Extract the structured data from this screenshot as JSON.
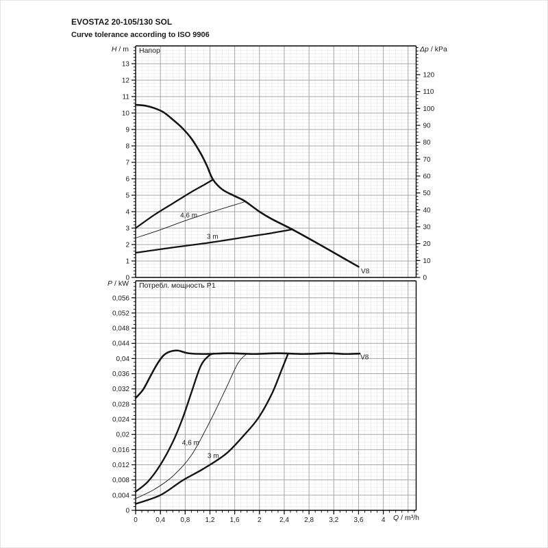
{
  "header": {
    "title": "EVOSTA2 20-105/130 SOL",
    "subtitle": "Curve tolerance according to ISO 9906"
  },
  "colors": {
    "curve": "#141414",
    "grid_major": "#a6a6a6",
    "grid_minor": "#e7e7e7",
    "axis": "#000000",
    "text": "#1a1a1a"
  },
  "chart_data": [
    {
      "type": "line",
      "title": "Напор",
      "y_left": {
        "symbol": "H",
        "unit": "/ m",
        "min": 0,
        "max": 14,
        "major_ticks": [
          0,
          1,
          2,
          3,
          4,
          5,
          6,
          7,
          8,
          9,
          10,
          11,
          12,
          13
        ],
        "labels": [
          "0",
          "1",
          "2",
          "3",
          "4",
          "5",
          "6",
          "7",
          "8",
          "9",
          "10",
          "11",
          "12",
          "13"
        ],
        "minor_step": 0.2
      },
      "y_right": {
        "symbol": "Δp",
        "unit": "/ kPa",
        "min": 0,
        "max": 130,
        "major_ticks": [
          0,
          10,
          20,
          30,
          40,
          50,
          60,
          70,
          80,
          90,
          100,
          110,
          120
        ],
        "labels": [
          "0",
          "10",
          "20",
          "30",
          "40",
          "50",
          "60",
          "70",
          "80",
          "90",
          "100",
          "110",
          "120"
        ],
        "minor_step": 2
      },
      "x": {
        "symbol": "Q",
        "unit": "/ m³/h",
        "min": 0,
        "max": 4.5,
        "major_ticks": [
          0,
          0.4,
          0.8,
          1.2,
          1.6,
          2,
          2.4,
          2.8,
          3.2,
          3.6,
          4
        ],
        "labels": [
          "0",
          "0,4",
          "0,8",
          "1,2",
          "1,6",
          "2",
          "2,4",
          "2,8",
          "3,2",
          "3,6",
          "4"
        ],
        "minor_step": 0.1
      },
      "series": [
        {
          "name": "max-speed-curve",
          "width": 2.6,
          "label": {
            "text": "V8",
            "x": 3.64,
            "y": 0.25
          },
          "points": [
            [
              0,
              10.5
            ],
            [
              0.15,
              10.45
            ],
            [
              0.3,
              10.3
            ],
            [
              0.45,
              10.05
            ],
            [
              0.6,
              9.6
            ],
            [
              0.75,
              9.1
            ],
            [
              0.9,
              8.45
            ],
            [
              1.05,
              7.55
            ],
            [
              1.15,
              6.8
            ],
            [
              1.25,
              5.95
            ],
            [
              1.4,
              5.35
            ],
            [
              1.6,
              4.95
            ],
            [
              1.76,
              4.65
            ],
            [
              2.0,
              4.0
            ],
            [
              2.2,
              3.55
            ],
            [
              2.53,
              2.92
            ],
            [
              2.9,
              2.15
            ],
            [
              3.25,
              1.4
            ],
            [
              3.6,
              0.65
            ]
          ]
        },
        {
          "name": "proportional-max-curve",
          "width": 2.3,
          "points": [
            [
              0,
              3.0
            ],
            [
              0.3,
              3.8
            ],
            [
              0.6,
              4.5
            ],
            [
              0.9,
              5.2
            ],
            [
              1.1,
              5.62
            ],
            [
              1.25,
              5.95
            ]
          ]
        },
        {
          "name": "curve-4-6m",
          "width": 0.9,
          "label": {
            "text": "4,6 m",
            "x": 0.72,
            "y": 3.65
          },
          "points": [
            [
              0,
              2.4
            ],
            [
              0.4,
              2.9
            ],
            [
              0.8,
              3.45
            ],
            [
              1.2,
              3.95
            ],
            [
              1.5,
              4.3
            ],
            [
              1.78,
              4.62
            ]
          ]
        },
        {
          "name": "curve-3m",
          "width": 2.3,
          "label": {
            "text": "3 m",
            "x": 1.15,
            "y": 2.35
          },
          "points": [
            [
              0,
              1.5
            ],
            [
              0.6,
              1.82
            ],
            [
              1.2,
              2.12
            ],
            [
              1.8,
              2.47
            ],
            [
              2.2,
              2.7
            ],
            [
              2.53,
              2.92
            ]
          ]
        }
      ]
    },
    {
      "type": "line",
      "title": "Потребл. мощность P1",
      "y_left": {
        "symbol": "P",
        "unit": "/ kW",
        "min": 0,
        "max": 0.06,
        "major_ticks": [
          0,
          0.004,
          0.008,
          0.012,
          0.016,
          0.02,
          0.024,
          0.028,
          0.032,
          0.036,
          0.04,
          0.044,
          0.048,
          0.052,
          0.056
        ],
        "labels": [
          "0",
          "0,004",
          "0,008",
          "0,012",
          "0,016",
          "0,02",
          "0,024",
          "0,028",
          "0,032",
          "0,036",
          "0,04",
          "0,044",
          "0,048",
          "0,052",
          "0,056"
        ],
        "minor_step": 0.001
      },
      "x": {
        "symbol": "Q",
        "unit": "/ m³/h",
        "min": 0,
        "max": 4.5,
        "major_ticks": [
          0,
          0.4,
          0.8,
          1.2,
          1.6,
          2,
          2.4,
          2.8,
          3.2,
          3.6,
          4
        ],
        "labels": [
          "0",
          "0,4",
          "0,8",
          "1,2",
          "1,6",
          "2",
          "2,4",
          "2,8",
          "3,2",
          "3,6",
          "4"
        ],
        "minor_step": 0.1
      },
      "series": [
        {
          "name": "max-speed-power-curve",
          "width": 2.6,
          "label": {
            "text": "V8",
            "x": 3.63,
            "y": 0.0398
          },
          "points": [
            [
              0,
              0.0296
            ],
            [
              0.12,
              0.0318
            ],
            [
              0.25,
              0.0357
            ],
            [
              0.35,
              0.0386
            ],
            [
              0.45,
              0.0408
            ],
            [
              0.55,
              0.0418
            ],
            [
              0.68,
              0.0421
            ],
            [
              0.85,
              0.0414
            ],
            [
              1.1,
              0.0412
            ],
            [
              1.5,
              0.0414
            ],
            [
              1.9,
              0.0412
            ],
            [
              2.3,
              0.0414
            ],
            [
              2.7,
              0.0412
            ],
            [
              3.1,
              0.0414
            ],
            [
              3.4,
              0.0412
            ],
            [
              3.62,
              0.0413
            ]
          ]
        },
        {
          "name": "proportional-max-power-curve",
          "width": 2.4,
          "points": [
            [
              0,
              0.0049
            ],
            [
              0.2,
              0.0076
            ],
            [
              0.4,
              0.012
            ],
            [
              0.6,
              0.018
            ],
            [
              0.76,
              0.0243
            ],
            [
              0.9,
              0.031
            ],
            [
              1.05,
              0.038
            ],
            [
              1.18,
              0.0407
            ],
            [
              1.26,
              0.0413
            ]
          ]
        },
        {
          "name": "power-curve-4-6m",
          "width": 0.9,
          "label": {
            "text": "4,6 m",
            "x": 0.75,
            "y": 0.0172
          },
          "points": [
            [
              0,
              0.0031
            ],
            [
              0.3,
              0.0055
            ],
            [
              0.6,
              0.009
            ],
            [
              0.9,
              0.0145
            ],
            [
              1.2,
              0.0234
            ],
            [
              1.45,
              0.0318
            ],
            [
              1.65,
              0.0387
            ],
            [
              1.79,
              0.0412
            ]
          ]
        },
        {
          "name": "power-curve-3m",
          "width": 2.4,
          "label": {
            "text": "3 m",
            "x": 1.16,
            "y": 0.0138
          },
          "points": [
            [
              0,
              0.0017
            ],
            [
              0.4,
              0.004
            ],
            [
              0.76,
              0.0079
            ],
            [
              1.1,
              0.011
            ],
            [
              1.46,
              0.0149
            ],
            [
              1.75,
              0.0198
            ],
            [
              1.98,
              0.0243
            ],
            [
              2.2,
              0.0307
            ],
            [
              2.35,
              0.0367
            ],
            [
              2.46,
              0.0412
            ]
          ]
        }
      ]
    }
  ]
}
